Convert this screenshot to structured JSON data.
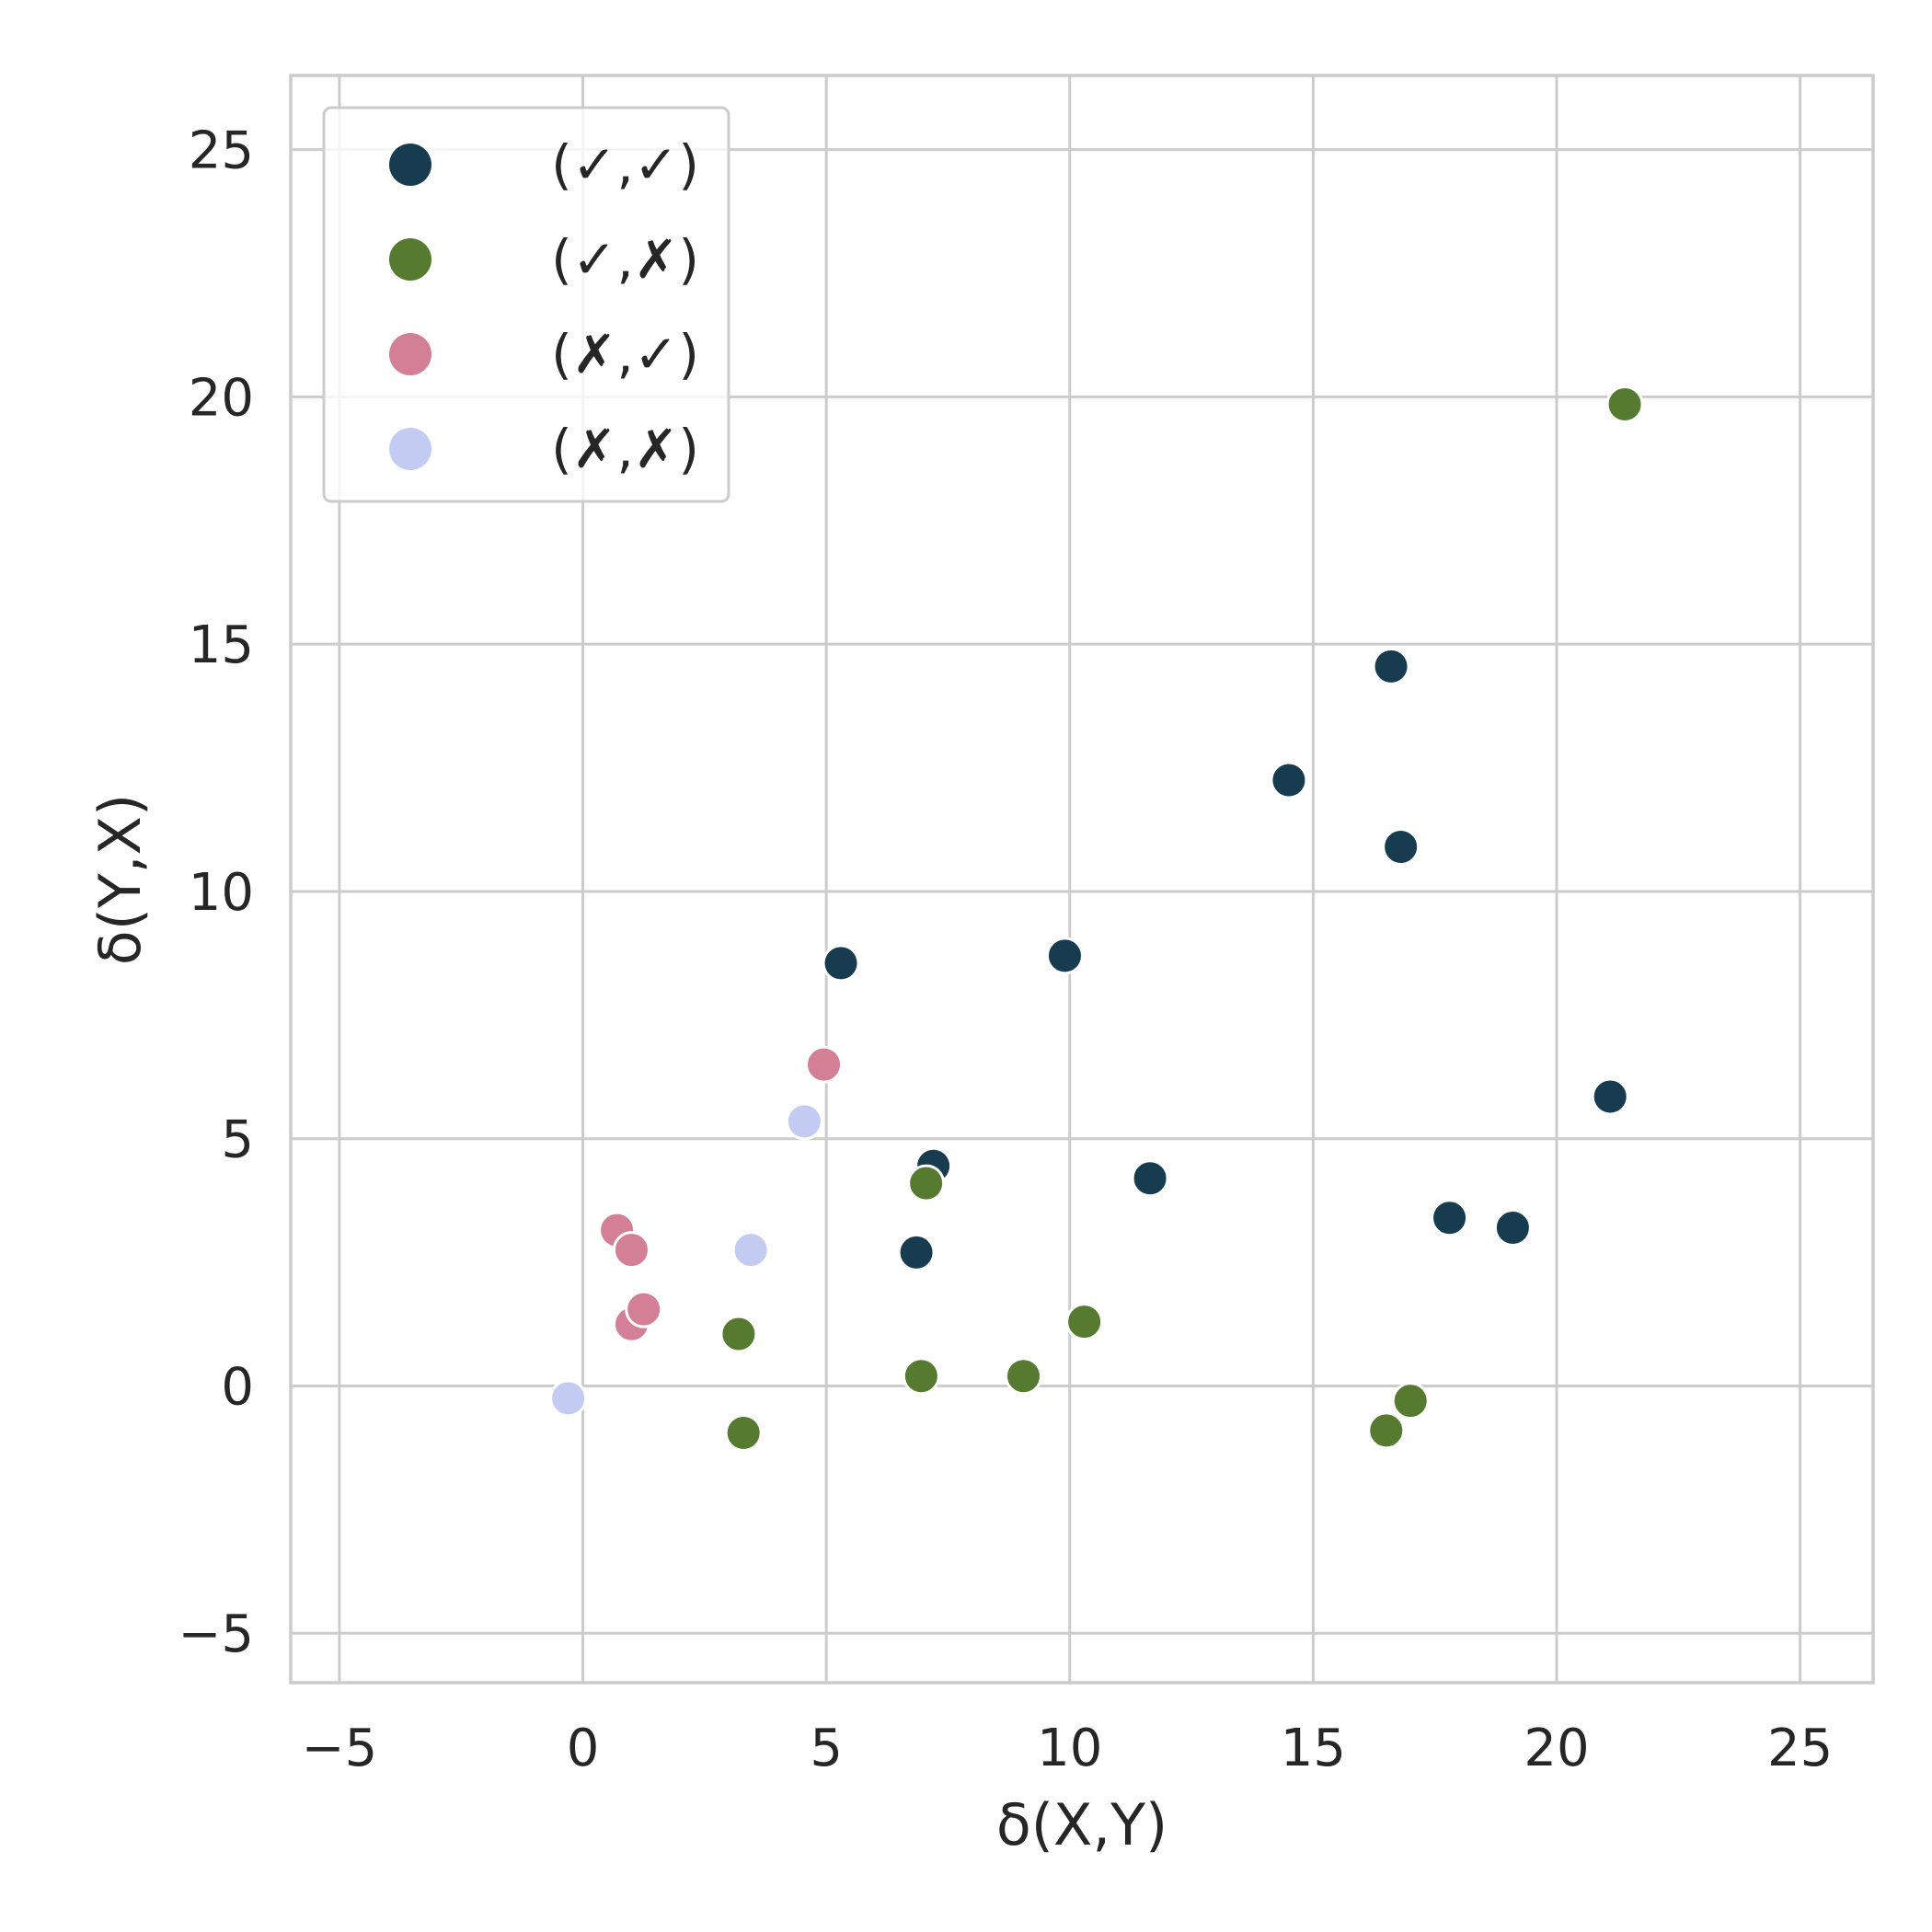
{
  "chart_data": {
    "type": "scatter",
    "xlabel": "δ(X,Y)",
    "ylabel": "δ(Y,X)",
    "xlim": [
      -6,
      26.5
    ],
    "ylim": [
      -6,
      26.5
    ],
    "xticks": [
      -5,
      0,
      5,
      10,
      15,
      20,
      25
    ],
    "yticks": [
      -5,
      0,
      5,
      10,
      15,
      20,
      25
    ],
    "xtick_labels": [
      "−5",
      "0",
      "5",
      "10",
      "15",
      "20",
      "25"
    ],
    "ytick_labels": [
      "−5",
      "0",
      "5",
      "10",
      "15",
      "20",
      "25"
    ],
    "grid": true,
    "legend_position": "top-left",
    "series": [
      {
        "name": "(✓,✓)",
        "color": "#173c4f",
        "points": [
          [
            5.3,
            8.55
          ],
          [
            9.9,
            8.7
          ],
          [
            7.2,
            4.45
          ],
          [
            6.85,
            2.7
          ],
          [
            11.65,
            4.2
          ],
          [
            14.5,
            12.25
          ],
          [
            16.6,
            14.55
          ],
          [
            16.8,
            10.9
          ],
          [
            17.8,
            3.4
          ],
          [
            19.1,
            3.2
          ],
          [
            21.1,
            5.85
          ]
        ]
      },
      {
        "name": "(✓,✗)",
        "color": "#557a30",
        "points": [
          [
            21.4,
            19.85
          ],
          [
            7.05,
            4.1
          ],
          [
            10.3,
            1.3
          ],
          [
            3.2,
            1.05
          ],
          [
            3.3,
            -0.95
          ],
          [
            6.95,
            0.2
          ],
          [
            9.05,
            0.2
          ],
          [
            16.5,
            -0.9
          ],
          [
            17.0,
            -0.3
          ]
        ]
      },
      {
        "name": "(✗,✓)",
        "color": "#d37f96",
        "points": [
          [
            4.95,
            6.5
          ],
          [
            0.7,
            3.15
          ],
          [
            1.0,
            2.75
          ],
          [
            1.0,
            1.25
          ],
          [
            1.25,
            1.55
          ]
        ]
      },
      {
        "name": "(✗,✗)",
        "color": "#c3cbf2",
        "points": [
          [
            4.55,
            5.35
          ],
          [
            3.45,
            2.75
          ],
          [
            -0.3,
            -0.25
          ]
        ]
      }
    ]
  }
}
